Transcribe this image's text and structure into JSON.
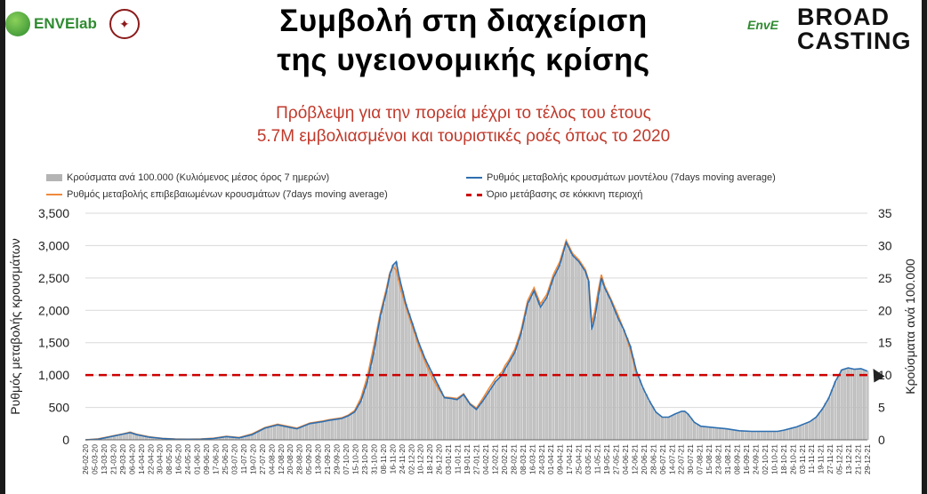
{
  "header": {
    "title_line1": "Συμβολή στη διαχείριση",
    "title_line2": "της υγειονομικής κρίσης",
    "subtitle_line1": "Πρόβλεψη για την πορεία μέχρι το τέλος του έτους",
    "subtitle_line2": "5.7M εμβολιασμένοι και τουριστικές ροές όπως το 2020",
    "logo_left_text": "ENVElab",
    "logo_right_text": "EnvE",
    "broadcasting_line1": "BROAD",
    "broadcasting_line2": "CASTING"
  },
  "colors": {
    "model_line": "#2e6fb0",
    "confirmed_line": "#f08a3c",
    "bars": "#b4b4b4",
    "threshold": "#cc0000",
    "subtitle": "#c0392b"
  },
  "chart_data": {
    "type": "bar",
    "legend": [
      "Κρούσματα ανά 100.000 (Κυλιόμενος μέσος όρος 7 ημερών)",
      "Ρυθμός μεταβολής κρουσμάτων μοντέλου (7days moving average)",
      "Ρυθμός μεταβολής επιβεβαιωμένων κρουσμάτων (7days moving average)",
      "Όριο μετάβασης σε κόκκινη περιοχή"
    ],
    "ylabel_left": "Ρυθμός μεταβολής κρουσμάτων",
    "ylabel_right": "Κρούσματα ανά 100.000",
    "ylim_left": [
      0,
      3500
    ],
    "ylim_right": [
      0,
      35
    ],
    "yticks_left": [
      "0",
      "500",
      "1,000",
      "1,500",
      "2,000",
      "2,500",
      "3,000",
      "3,500"
    ],
    "yticks_right": [
      "0",
      "5",
      "10",
      "15",
      "20",
      "25",
      "30",
      "35"
    ],
    "threshold": 1000,
    "grid": true,
    "x_tick_labels": [
      "26-02-20",
      "05-03-20",
      "13-03-20",
      "21-03-20",
      "29-03-20",
      "06-04-20",
      "14-04-20",
      "22-04-20",
      "30-04-20",
      "08-05-20",
      "16-05-20",
      "24-05-20",
      "01-06-20",
      "09-06-20",
      "17-06-20",
      "25-06-20",
      "03-07-20",
      "11-07-20",
      "19-07-20",
      "27-07-20",
      "04-08-20",
      "12-08-20",
      "20-08-20",
      "28-08-20",
      "05-09-20",
      "13-09-20",
      "21-09-20",
      "29-09-20",
      "07-10-20",
      "15-10-20",
      "23-10-20",
      "31-10-20",
      "08-11-20",
      "16-11-20",
      "24-11-20",
      "02-12-20",
      "10-12-20",
      "18-12-20",
      "26-12-20",
      "03-01-21",
      "11-01-21",
      "19-01-21",
      "27-01-21",
      "04-02-21",
      "12-02-21",
      "20-02-21",
      "28-02-21",
      "08-03-21",
      "16-03-21",
      "24-03-21",
      "01-04-21",
      "09-04-21",
      "17-04-21",
      "25-04-21",
      "03-05-21",
      "11-05-21",
      "19-05-21",
      "27-05-21",
      "04-06-21",
      "12-06-21",
      "20-06-21",
      "28-06-21",
      "06-07-21",
      "14-07-21",
      "22-07-21",
      "30-07-21",
      "07-08-21",
      "15-08-21",
      "23-08-21",
      "31-08-21",
      "08-09-21",
      "16-09-21",
      "24-09-21",
      "02-10-21",
      "10-10-21",
      "18-10-21",
      "26-10-21",
      "03-11-21",
      "11-11-21",
      "19-11-21",
      "27-11-21",
      "05-12-21",
      "13-12-21",
      "21-12-21",
      "29-12-21"
    ],
    "model_series": [
      [
        0,
        0
      ],
      [
        4,
        10
      ],
      [
        8,
        50
      ],
      [
        12,
        90
      ],
      [
        14,
        110
      ],
      [
        16,
        80
      ],
      [
        20,
        40
      ],
      [
        24,
        20
      ],
      [
        28,
        10
      ],
      [
        32,
        8
      ],
      [
        36,
        10
      ],
      [
        40,
        20
      ],
      [
        44,
        50
      ],
      [
        48,
        30
      ],
      [
        52,
        80
      ],
      [
        56,
        180
      ],
      [
        60,
        230
      ],
      [
        64,
        190
      ],
      [
        66,
        170
      ],
      [
        70,
        250
      ],
      [
        74,
        280
      ],
      [
        76,
        300
      ],
      [
        80,
        330
      ],
      [
        82,
        370
      ],
      [
        84,
        430
      ],
      [
        86,
        600
      ],
      [
        88,
        900
      ],
      [
        90,
        1350
      ],
      [
        92,
        1900
      ],
      [
        94,
        2300
      ],
      [
        95,
        2550
      ],
      [
        96,
        2700
      ],
      [
        97,
        2750
      ],
      [
        98,
        2500
      ],
      [
        100,
        2100
      ],
      [
        102,
        1800
      ],
      [
        104,
        1500
      ],
      [
        106,
        1250
      ],
      [
        108,
        1050
      ],
      [
        110,
        850
      ],
      [
        112,
        650
      ],
      [
        114,
        640
      ],
      [
        116,
        620
      ],
      [
        118,
        700
      ],
      [
        120,
        550
      ],
      [
        122,
        470
      ],
      [
        124,
        600
      ],
      [
        126,
        750
      ],
      [
        128,
        900
      ],
      [
        130,
        1000
      ],
      [
        131,
        1100
      ],
      [
        132,
        1180
      ],
      [
        134,
        1350
      ],
      [
        136,
        1650
      ],
      [
        138,
        2100
      ],
      [
        140,
        2300
      ],
      [
        142,
        2050
      ],
      [
        144,
        2200
      ],
      [
        146,
        2500
      ],
      [
        148,
        2700
      ],
      [
        150,
        3050
      ],
      [
        152,
        2850
      ],
      [
        154,
        2750
      ],
      [
        156,
        2600
      ],
      [
        157,
        2450
      ],
      [
        158,
        1700
      ],
      [
        159,
        1900
      ],
      [
        160,
        2200
      ],
      [
        161,
        2500
      ],
      [
        162,
        2350
      ],
      [
        164,
        2150
      ],
      [
        166,
        1900
      ],
      [
        168,
        1700
      ],
      [
        170,
        1450
      ],
      [
        172,
        1050
      ],
      [
        174,
        800
      ],
      [
        176,
        600
      ],
      [
        178,
        430
      ],
      [
        180,
        350
      ],
      [
        182,
        350
      ],
      [
        184,
        400
      ],
      [
        186,
        440
      ],
      [
        187,
        440
      ],
      [
        188,
        400
      ],
      [
        190,
        270
      ],
      [
        192,
        210
      ],
      [
        196,
        190
      ],
      [
        200,
        170
      ],
      [
        204,
        140
      ],
      [
        208,
        130
      ],
      [
        212,
        130
      ],
      [
        216,
        130
      ],
      [
        218,
        150
      ],
      [
        222,
        200
      ],
      [
        226,
        280
      ],
      [
        228,
        350
      ],
      [
        230,
        480
      ],
      [
        232,
        650
      ],
      [
        234,
        900
      ],
      [
        236,
        1080
      ],
      [
        238,
        1110
      ],
      [
        240,
        1090
      ],
      [
        242,
        1100
      ],
      [
        244,
        1060
      ]
    ],
    "confirmed_series": [
      [
        0,
        0
      ],
      [
        4,
        15
      ],
      [
        8,
        55
      ],
      [
        12,
        95
      ],
      [
        14,
        120
      ],
      [
        16,
        85
      ],
      [
        20,
        45
      ],
      [
        24,
        22
      ],
      [
        28,
        12
      ],
      [
        32,
        10
      ],
      [
        36,
        12
      ],
      [
        40,
        25
      ],
      [
        44,
        55
      ],
      [
        48,
        35
      ],
      [
        52,
        90
      ],
      [
        56,
        190
      ],
      [
        60,
        240
      ],
      [
        64,
        200
      ],
      [
        66,
        180
      ],
      [
        70,
        260
      ],
      [
        74,
        290
      ],
      [
        76,
        310
      ],
      [
        80,
        340
      ],
      [
        82,
        380
      ],
      [
        84,
        450
      ],
      [
        86,
        650
      ],
      [
        88,
        980
      ],
      [
        90,
        1450
      ],
      [
        92,
        1950
      ],
      [
        94,
        2350
      ],
      [
        95,
        2580
      ],
      [
        96,
        2680
      ],
      [
        97,
        2620
      ],
      [
        98,
        2400
      ],
      [
        100,
        2050
      ],
      [
        102,
        1750
      ],
      [
        104,
        1450
      ],
      [
        106,
        1200
      ],
      [
        108,
        980
      ],
      [
        110,
        800
      ],
      [
        112,
        660
      ],
      [
        114,
        650
      ],
      [
        116,
        640
      ],
      [
        118,
        710
      ],
      [
        120,
        560
      ],
      [
        122,
        490
      ],
      [
        124,
        640
      ],
      [
        126,
        800
      ],
      [
        128,
        950
      ],
      [
        130,
        1050
      ],
      [
        131,
        1150
      ],
      [
        132,
        1220
      ],
      [
        134,
        1400
      ],
      [
        136,
        1700
      ],
      [
        138,
        2150
      ],
      [
        140,
        2350
      ],
      [
        142,
        2100
      ],
      [
        144,
        2250
      ],
      [
        146,
        2550
      ],
      [
        148,
        2750
      ],
      [
        150,
        3080
      ],
      [
        152,
        2880
      ],
      [
        154,
        2780
      ],
      [
        156,
        2630
      ],
      [
        157,
        2470
      ],
      [
        158,
        1800
      ],
      [
        159,
        2000
      ],
      [
        160,
        2300
      ],
      [
        161,
        2550
      ],
      [
        162,
        2380
      ],
      [
        164,
        2170
      ],
      [
        166,
        1950
      ],
      [
        168,
        1700
      ],
      [
        170,
        1400
      ],
      [
        172,
        1000
      ]
    ],
    "bar_values_per_100k": [
      [
        0,
        0
      ],
      [
        4,
        1
      ],
      [
        8,
        5
      ],
      [
        12,
        9
      ],
      [
        14,
        11
      ],
      [
        16,
        8
      ],
      [
        20,
        4
      ],
      [
        24,
        2
      ],
      [
        28,
        1
      ],
      [
        32,
        1
      ],
      [
        36,
        1
      ],
      [
        40,
        2
      ],
      [
        44,
        5
      ],
      [
        48,
        3
      ],
      [
        52,
        8
      ],
      [
        56,
        18
      ],
      [
        60,
        23
      ],
      [
        64,
        19
      ],
      [
        66,
        17
      ],
      [
        70,
        25
      ],
      [
        74,
        28
      ],
      [
        76,
        30
      ],
      [
        80,
        33
      ],
      [
        82,
        37
      ],
      [
        84,
        43
      ],
      [
        86,
        60
      ],
      [
        88,
        90
      ],
      [
        90,
        135
      ],
      [
        92,
        190
      ],
      [
        94,
        230
      ],
      [
        95,
        255
      ],
      [
        96,
        270
      ],
      [
        97,
        275
      ],
      [
        98,
        250
      ],
      [
        100,
        210
      ],
      [
        102,
        180
      ],
      [
        104,
        150
      ],
      [
        106,
        125
      ],
      [
        108,
        105
      ],
      [
        110,
        85
      ],
      [
        112,
        65
      ],
      [
        114,
        64
      ],
      [
        116,
        62
      ],
      [
        118,
        70
      ],
      [
        120,
        55
      ],
      [
        122,
        47
      ],
      [
        124,
        60
      ],
      [
        126,
        75
      ],
      [
        128,
        90
      ],
      [
        130,
        100
      ],
      [
        131,
        110
      ],
      [
        132,
        118
      ],
      [
        134,
        135
      ],
      [
        136,
        165
      ],
      [
        138,
        210
      ],
      [
        140,
        230
      ],
      [
        142,
        205
      ],
      [
        144,
        220
      ],
      [
        146,
        250
      ],
      [
        148,
        270
      ],
      [
        150,
        305
      ],
      [
        152,
        285
      ],
      [
        154,
        275
      ],
      [
        156,
        260
      ],
      [
        157,
        245
      ],
      [
        158,
        170
      ],
      [
        159,
        190
      ],
      [
        160,
        220
      ],
      [
        161,
        250
      ],
      [
        162,
        235
      ],
      [
        164,
        215
      ],
      [
        166,
        190
      ],
      [
        168,
        170
      ],
      [
        170,
        145
      ],
      [
        172,
        105
      ],
      [
        174,
        80
      ],
      [
        176,
        60
      ],
      [
        178,
        43
      ],
      [
        180,
        35
      ],
      [
        182,
        35
      ],
      [
        184,
        40
      ],
      [
        186,
        44
      ],
      [
        187,
        44
      ],
      [
        188,
        40
      ],
      [
        190,
        27
      ],
      [
        192,
        21
      ],
      [
        196,
        19
      ],
      [
        200,
        17
      ],
      [
        204,
        14
      ],
      [
        208,
        13
      ],
      [
        212,
        13
      ],
      [
        216,
        13
      ],
      [
        218,
        15
      ],
      [
        222,
        20
      ],
      [
        226,
        28
      ],
      [
        228,
        35
      ],
      [
        230,
        48
      ],
      [
        232,
        65
      ],
      [
        234,
        90
      ],
      [
        236,
        108
      ],
      [
        238,
        111
      ],
      [
        240,
        109
      ],
      [
        242,
        110
      ],
      [
        244,
        106
      ]
    ]
  }
}
